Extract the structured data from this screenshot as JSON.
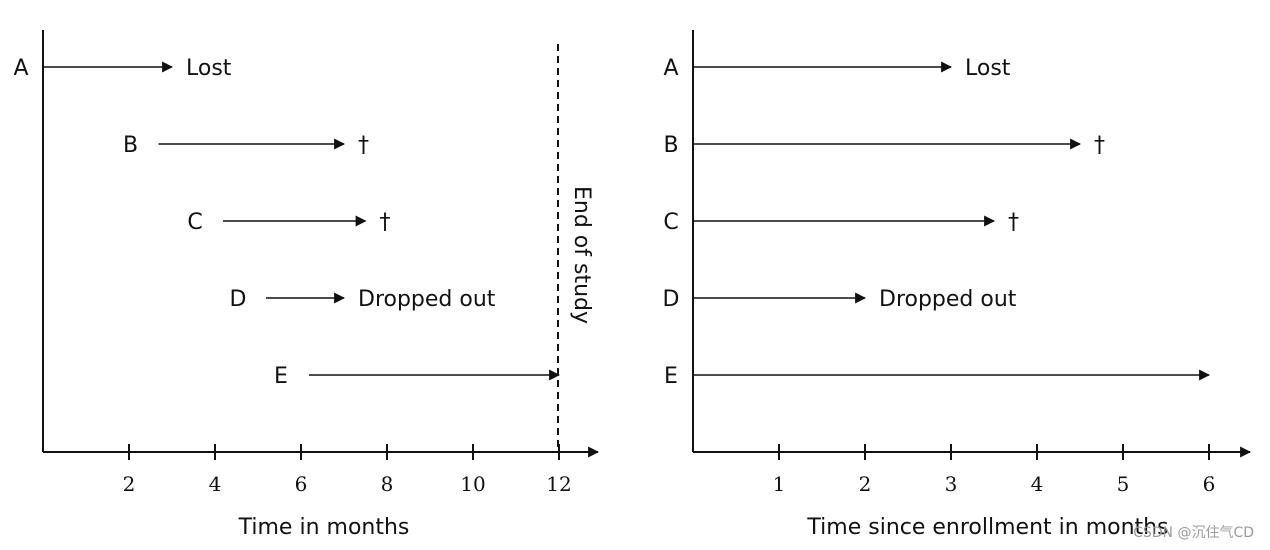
{
  "left_panel": {
    "xlabel": "Time in months",
    "ticks": [
      "2",
      "4",
      "6",
      "8",
      "10",
      "12"
    ],
    "end_of_study": "End of study",
    "subjects": [
      {
        "id": "A",
        "start": 0,
        "end": 3,
        "outcome": "Lost"
      },
      {
        "id": "B",
        "start": 2.5,
        "end": 7,
        "outcome": "†"
      },
      {
        "id": "C",
        "start": 4,
        "end": 7.5,
        "outcome": "†"
      },
      {
        "id": "D",
        "start": 5,
        "end": 7,
        "outcome": "Dropped out"
      },
      {
        "id": "E",
        "start": 6,
        "end": 12,
        "outcome": ""
      }
    ]
  },
  "right_panel": {
    "xlabel": "Time since enrollment in months",
    "ticks": [
      "1",
      "2",
      "3",
      "4",
      "5",
      "6"
    ],
    "subjects": [
      {
        "id": "A",
        "start": 0,
        "end": 3,
        "outcome": "Lost"
      },
      {
        "id": "B",
        "start": 0,
        "end": 4.5,
        "outcome": "†"
      },
      {
        "id": "C",
        "start": 0,
        "end": 3.5,
        "outcome": "†"
      },
      {
        "id": "D",
        "start": 0,
        "end": 2,
        "outcome": "Dropped out"
      },
      {
        "id": "E",
        "start": 0,
        "end": 6,
        "outcome": ""
      }
    ]
  },
  "watermark": "CSDN @沉住气CD"
}
